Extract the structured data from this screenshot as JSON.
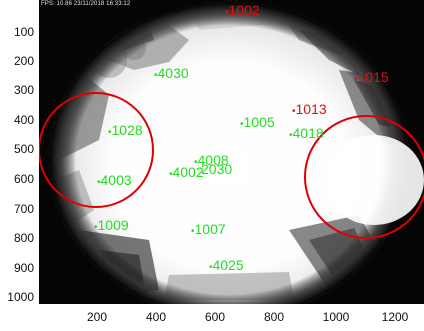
{
  "image": {
    "overlay_text": "FPS: 10.86 23/11/2018 16:33:12",
    "scene": "fisheye-sky-view",
    "y_ticks": [
      "100",
      "200",
      "300",
      "400",
      "500",
      "600",
      "700",
      "800",
      "900",
      "1000"
    ],
    "x_ticks": [
      "200",
      "400",
      "600",
      "800",
      "1000",
      "1200"
    ],
    "colors": {
      "green_label": "#22dd22",
      "red_label": "#e01010",
      "circle": "#e00000"
    },
    "green_labels": [
      "4030",
      "1028",
      "1005",
      "4003",
      "4002",
      "4008",
      "2030",
      "1009",
      "1007",
      "4025"
    ],
    "red_labels": [
      "1002",
      "1015",
      "1013"
    ],
    "partially_hidden_green_label": "4018"
  }
}
